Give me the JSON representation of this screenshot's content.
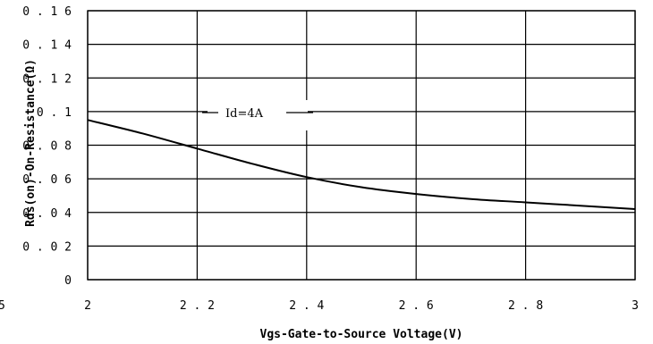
{
  "chart_data": {
    "type": "line",
    "xlabel": "Vgs-Gate-to-Source Voltage(V)",
    "ylabel": "Rds(on)-On-Resistance(Ω)",
    "xlim": [
      2,
      3
    ],
    "ylim": [
      0,
      0.16
    ],
    "x_ticks": [
      "2",
      "2.2",
      "2.4",
      "2.6",
      "2.8",
      "3"
    ],
    "x_ticks_left_clipped": "5",
    "y_ticks": [
      "0",
      "0.02",
      "0.04",
      "0.06",
      "0.08",
      "0.1",
      "0.12",
      "0.14",
      "0.16"
    ],
    "grid": true,
    "annotation": "Id=4A",
    "series": [
      {
        "x": [
          2.0,
          2.1,
          2.2,
          2.3,
          2.4,
          2.5,
          2.6,
          2.7,
          2.8,
          2.9,
          3.0
        ],
        "y": [
          0.095,
          0.087,
          0.078,
          0.069,
          0.061,
          0.055,
          0.051,
          0.048,
          0.046,
          0.044,
          0.042
        ]
      }
    ]
  }
}
